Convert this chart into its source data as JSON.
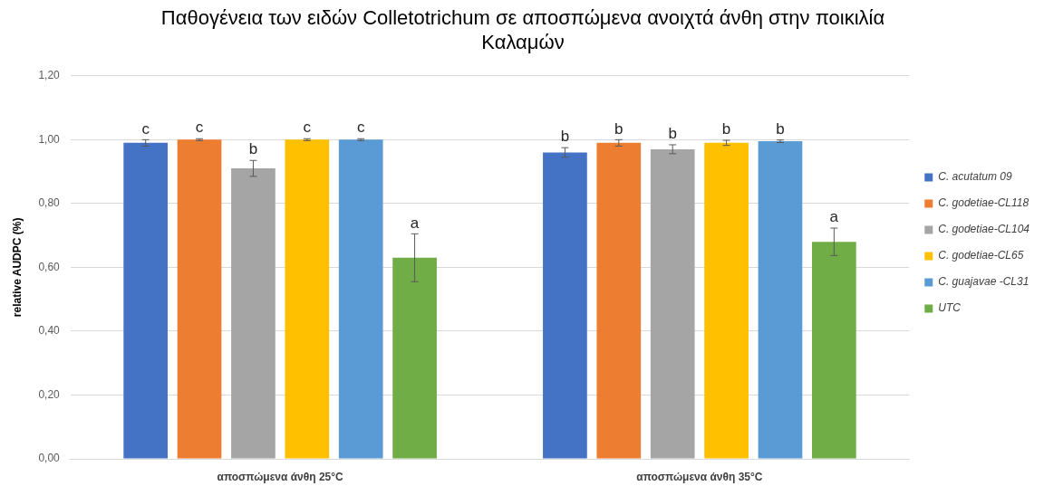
{
  "chart_data": {
    "type": "bar",
    "title": "Παθογένεια των ειδών Colletotrichum σε αποσπώμενα ανοιχτά άνθη στην ποικιλία Καλαμών",
    "ylabel": "relative AUDPC (%)",
    "categories": [
      "αποσπώμενα άνθη 25°C",
      "αποσπώμενα άνθη 35°C"
    ],
    "series": [
      {
        "name": "C. acutatum 09",
        "color": "#4472c4",
        "values": [
          0.99,
          0.96
        ],
        "errors": [
          0.01,
          0.015
        ],
        "value_labels": [
          "c",
          "b"
        ]
      },
      {
        "name": "C. godetiae-CL118",
        "color": "#ed7d31",
        "values": [
          1.0,
          0.99
        ],
        "errors": [
          0.003,
          0.01
        ],
        "value_labels": [
          "c",
          "b"
        ]
      },
      {
        "name": "C. godetiae-CL104",
        "color": "#a5a5a5",
        "values": [
          0.91,
          0.97
        ],
        "errors": [
          0.025,
          0.014
        ],
        "value_labels": [
          "b",
          "b"
        ]
      },
      {
        "name": "C. godetiae-CL65",
        "color": "#ffc000",
        "values": [
          1.0,
          0.99
        ],
        "errors": [
          0.003,
          0.008
        ],
        "value_labels": [
          "c",
          "b"
        ]
      },
      {
        "name": "C. guajavae -CL31",
        "color": "#5b9bd5",
        "values": [
          1.0,
          0.995
        ],
        "errors": [
          0.003,
          0.004
        ],
        "value_labels": [
          "c",
          "b"
        ]
      },
      {
        "name": "UTC",
        "color": "#70ad47",
        "values": [
          0.63,
          0.68
        ],
        "errors": [
          0.075,
          0.043
        ],
        "value_labels": [
          "a",
          "a"
        ]
      }
    ],
    "ylim": [
      0,
      1.2
    ],
    "yticks": [
      {
        "value": 0,
        "label": "0,00"
      },
      {
        "value": 0.2,
        "label": "0,20"
      },
      {
        "value": 0.4,
        "label": "0,40"
      },
      {
        "value": 0.6,
        "label": "0,60"
      },
      {
        "value": 0.8,
        "label": "0,80"
      },
      {
        "value": 1.0,
        "label": "1,00"
      },
      {
        "value": 1.2,
        "label": "1,20"
      }
    ],
    "grid": "y",
    "legend": "right"
  }
}
